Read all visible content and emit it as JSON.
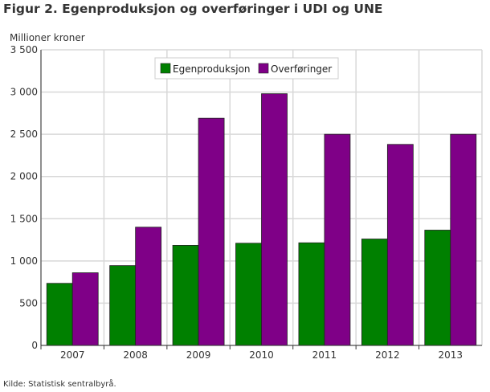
{
  "chart_data": {
    "type": "bar",
    "title": "Figur 2. Egenproduksjon og overføringer i UDI og UNE",
    "ylabel": "Millioner kroner",
    "xlabel": "",
    "source": "Kilde: Statistisk sentralbyrå.",
    "categories": [
      "2007",
      "2008",
      "2009",
      "2010",
      "2011",
      "2012",
      "2013"
    ],
    "ylim": [
      0,
      3500
    ],
    "yticks": [
      0,
      500,
      1000,
      1500,
      2000,
      2500,
      3000,
      3500
    ],
    "ytick_labels": [
      "0",
      "500",
      "1 000",
      "1 500",
      "2 000",
      "2 500",
      "3 000",
      "3 500"
    ],
    "grid": true,
    "legend_position": "top-center",
    "series": [
      {
        "name": "Egenproduksjon",
        "color": "#008000",
        "values": [
          735,
          945,
          1185,
          1210,
          1215,
          1260,
          1365
        ]
      },
      {
        "name": "Overføringer",
        "color": "#7f0087",
        "values": [
          860,
          1400,
          2690,
          2980,
          2500,
          2380,
          2500
        ]
      }
    ]
  }
}
